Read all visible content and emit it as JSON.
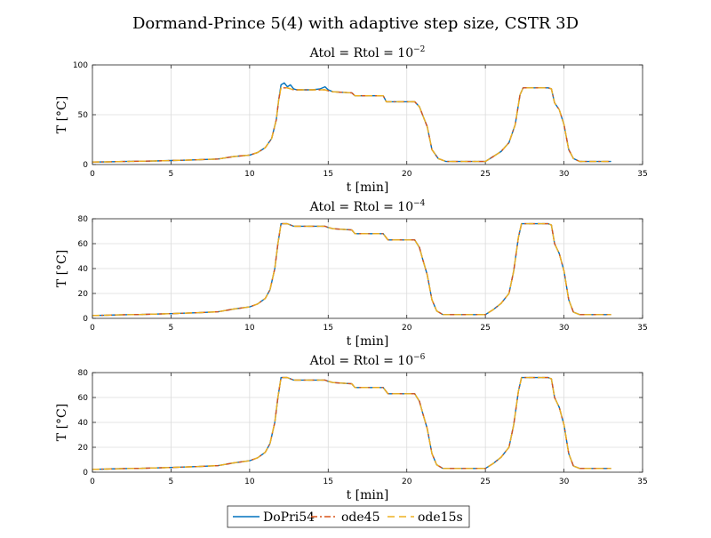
{
  "figure": {
    "title": "Dormand-Prince 5(4) with adaptive step size, CSTR 3D"
  },
  "legend": {
    "entries": [
      {
        "label": "DoPri54",
        "color": "#0072BD",
        "dash": "solid"
      },
      {
        "label": "ode45",
        "color": "#D95319",
        "dash": "dashdot"
      },
      {
        "label": "ode15s",
        "color": "#EDB120",
        "dash": "dashed"
      }
    ]
  },
  "chart_data": [
    {
      "type": "line",
      "title_prefix": "Atol = Rtol = 10",
      "title_exp": "−2",
      "xlabel": "t [min]",
      "ylabel": "T [°C]",
      "xlim": [
        0,
        35
      ],
      "ylim": [
        0,
        100
      ],
      "xticks": [
        "0",
        "5",
        "10",
        "15",
        "20",
        "25",
        "30",
        "35"
      ],
      "yticks": [
        "0",
        "50",
        "100"
      ],
      "grid": true,
      "series": [
        {
          "name": "DoPri54",
          "x": [
            0,
            1,
            2,
            3,
            4,
            5,
            6,
            7,
            8,
            9,
            10,
            10.5,
            11,
            11.4,
            11.7,
            11.85,
            12.0,
            12.2,
            12.4,
            12.6,
            12.8,
            13.0,
            14.0,
            14.5,
            14.8,
            15.0,
            15.3,
            16.5,
            16.7,
            18.5,
            18.7,
            20.5,
            20.8,
            21.0,
            21.3,
            21.6,
            22.0,
            22.5,
            23,
            24,
            25,
            25.5,
            26,
            26.5,
            26.9,
            27.2,
            27.4,
            29.0,
            29.2,
            29.4,
            29.7,
            30.0,
            30.3,
            30.6,
            31,
            32,
            33
          ],
          "y": [
            2.5,
            2.7,
            3,
            3.3,
            3.6,
            4.0,
            4.4,
            5.0,
            5.5,
            8,
            9.5,
            12,
            17,
            26,
            45,
            65,
            80,
            82,
            78,
            80,
            76,
            75,
            75,
            76,
            78,
            75,
            73,
            72,
            69,
            69,
            63,
            63,
            58,
            50,
            38,
            15,
            6,
            3,
            3,
            3,
            3,
            8,
            13,
            22,
            40,
            70,
            77,
            77,
            76,
            62,
            55,
            40,
            15,
            6,
            3,
            3,
            3
          ]
        },
        {
          "name": "ode45",
          "x": [
            0,
            1,
            2,
            3,
            4,
            5,
            6,
            7,
            8,
            9,
            10,
            10.5,
            11,
            11.4,
            11.7,
            11.85,
            12.0,
            12.4,
            12.8,
            13.0,
            14.8,
            15.0,
            15.3,
            16.5,
            16.7,
            18.5,
            18.7,
            20.5,
            20.8,
            21.0,
            21.3,
            21.6,
            22.0,
            22.5,
            23,
            24,
            25,
            25.5,
            26,
            26.5,
            26.9,
            27.2,
            27.4,
            29.0,
            29.2,
            29.4,
            29.7,
            30.0,
            30.3,
            30.6,
            31,
            32,
            33
          ],
          "y": [
            2.5,
            2.7,
            3,
            3.3,
            3.6,
            4.0,
            4.4,
            5.0,
            5.5,
            8,
            9.5,
            12,
            17,
            26,
            45,
            65,
            77,
            77,
            75,
            75,
            75,
            74,
            73,
            72,
            69,
            69,
            63,
            63,
            58,
            50,
            38,
            15,
            6,
            3,
            3,
            3,
            3,
            8,
            13,
            22,
            40,
            70,
            77,
            77,
            76,
            62,
            55,
            40,
            15,
            6,
            3,
            3,
            3
          ]
        },
        {
          "name": "ode15s",
          "x": [
            0,
            1,
            2,
            3,
            4,
            5,
            6,
            7,
            8,
            9,
            10,
            10.5,
            11,
            11.4,
            11.7,
            11.85,
            12.0,
            12.4,
            12.8,
            13.0,
            14.8,
            15.0,
            15.3,
            16.5,
            16.7,
            18.5,
            18.7,
            20.5,
            20.8,
            21.0,
            21.3,
            21.6,
            22.0,
            22.5,
            23,
            24,
            25,
            25.5,
            26,
            26.5,
            26.9,
            27.2,
            27.4,
            29.0,
            29.2,
            29.4,
            29.7,
            30.0,
            30.3,
            30.6,
            31,
            32,
            33
          ],
          "y": [
            2.5,
            2.7,
            3,
            3.3,
            3.6,
            4.0,
            4.4,
            5.0,
            5.5,
            8,
            9.5,
            12,
            17,
            26,
            45,
            65,
            77,
            77,
            75,
            75,
            75,
            74,
            73,
            72,
            69,
            69,
            63,
            63,
            58,
            50,
            38,
            15,
            6,
            3,
            3,
            3,
            3,
            8,
            13,
            22,
            40,
            70,
            77,
            77,
            76,
            62,
            55,
            40,
            15,
            6,
            3,
            3,
            3
          ]
        }
      ]
    },
    {
      "type": "line",
      "title_prefix": "Atol = Rtol = 10",
      "title_exp": "−4",
      "xlabel": "t [min]",
      "ylabel": "T [°C]",
      "xlim": [
        0,
        35
      ],
      "ylim": [
        0,
        80
      ],
      "xticks": [
        "0",
        "5",
        "10",
        "15",
        "20",
        "25",
        "30",
        "35"
      ],
      "yticks": [
        "0",
        "20",
        "40",
        "60",
        "80"
      ],
      "grid": true,
      "series": [
        {
          "name": "DoPri54",
          "x": [
            0,
            1,
            2,
            3,
            4,
            5,
            6,
            7,
            8,
            9,
            10,
            10.5,
            11,
            11.3,
            11.6,
            11.8,
            12.0,
            12.4,
            12.8,
            13.0,
            14.8,
            15.0,
            15.3,
            16.5,
            16.7,
            18.5,
            18.8,
            20.5,
            20.8,
            21.0,
            21.3,
            21.6,
            21.9,
            22.3,
            23,
            24,
            25,
            25.5,
            26,
            26.5,
            26.8,
            27.1,
            27.3,
            29.0,
            29.2,
            29.4,
            29.7,
            30.0,
            30.3,
            30.6,
            31,
            32,
            33
          ],
          "y": [
            2.3,
            2.6,
            2.9,
            3.1,
            3.4,
            3.8,
            4.2,
            4.7,
            5.3,
            7.5,
            9.2,
            11.5,
            16,
            23,
            40,
            60,
            76,
            76,
            74,
            74,
            74,
            73,
            72,
            71,
            68,
            68,
            63,
            63,
            57,
            48,
            35,
            15,
            6,
            3,
            3,
            3,
            3,
            7,
            12,
            20,
            38,
            65,
            76,
            76,
            75,
            60,
            52,
            38,
            15,
            5,
            3,
            3,
            3
          ]
        },
        {
          "name": "ode45",
          "x": [
            0,
            1,
            2,
            3,
            4,
            5,
            6,
            7,
            8,
            9,
            10,
            10.5,
            11,
            11.3,
            11.6,
            11.8,
            12.0,
            12.4,
            12.8,
            13.0,
            14.8,
            15.0,
            15.3,
            16.5,
            16.7,
            18.5,
            18.8,
            20.5,
            20.8,
            21.0,
            21.3,
            21.6,
            21.9,
            22.3,
            23,
            24,
            25,
            25.5,
            26,
            26.5,
            26.8,
            27.1,
            27.3,
            29.0,
            29.2,
            29.4,
            29.7,
            30.0,
            30.3,
            30.6,
            31,
            32,
            33
          ],
          "y": [
            2.3,
            2.6,
            2.9,
            3.1,
            3.4,
            3.8,
            4.2,
            4.7,
            5.3,
            7.5,
            9.2,
            11.5,
            16,
            23,
            40,
            60,
            76,
            76,
            74,
            74,
            74,
            73,
            72,
            71,
            68,
            68,
            63,
            63,
            57,
            48,
            35,
            15,
            6,
            3,
            3,
            3,
            3,
            7,
            12,
            20,
            38,
            65,
            76,
            76,
            75,
            60,
            52,
            38,
            15,
            5,
            3,
            3,
            3
          ]
        },
        {
          "name": "ode15s",
          "x": [
            0,
            1,
            2,
            3,
            4,
            5,
            6,
            7,
            8,
            9,
            10,
            10.5,
            11,
            11.3,
            11.6,
            11.8,
            12.0,
            12.4,
            12.8,
            13.0,
            14.8,
            15.0,
            15.3,
            16.5,
            16.7,
            18.5,
            18.8,
            20.5,
            20.8,
            21.0,
            21.3,
            21.6,
            21.9,
            22.3,
            23,
            24,
            25,
            25.5,
            26,
            26.5,
            26.8,
            27.1,
            27.3,
            29.0,
            29.2,
            29.4,
            29.7,
            30.0,
            30.3,
            30.6,
            31,
            32,
            33
          ],
          "y": [
            2.3,
            2.6,
            2.9,
            3.1,
            3.4,
            3.8,
            4.2,
            4.7,
            5.3,
            7.5,
            9.2,
            11.5,
            16,
            23,
            40,
            60,
            76,
            76,
            74,
            74,
            74,
            73,
            72,
            71,
            68,
            68,
            63,
            63,
            57,
            48,
            35,
            15,
            6,
            3,
            3,
            3,
            3,
            7,
            12,
            20,
            38,
            65,
            76,
            76,
            75,
            60,
            52,
            38,
            15,
            5,
            3,
            3,
            3
          ]
        }
      ]
    },
    {
      "type": "line",
      "title_prefix": "Atol = Rtol = 10",
      "title_exp": "−6",
      "xlabel": "t [min]",
      "ylabel": "T [°C]",
      "xlim": [
        0,
        35
      ],
      "ylim": [
        0,
        80
      ],
      "xticks": [
        "0",
        "5",
        "10",
        "15",
        "20",
        "25",
        "30",
        "35"
      ],
      "yticks": [
        "0",
        "20",
        "40",
        "60",
        "80"
      ],
      "grid": true,
      "series": [
        {
          "name": "DoPri54",
          "x": [
            0,
            1,
            2,
            3,
            4,
            5,
            6,
            7,
            8,
            9,
            10,
            10.5,
            11,
            11.3,
            11.6,
            11.8,
            12.0,
            12.4,
            12.8,
            13.0,
            14.8,
            15.0,
            15.3,
            16.5,
            16.7,
            18.5,
            18.8,
            20.5,
            20.8,
            21.0,
            21.3,
            21.6,
            21.9,
            22.3,
            23,
            24,
            25,
            25.5,
            26,
            26.5,
            26.8,
            27.1,
            27.3,
            29.0,
            29.2,
            29.4,
            29.7,
            30.0,
            30.3,
            30.6,
            31,
            32,
            33
          ],
          "y": [
            2.3,
            2.6,
            2.9,
            3.1,
            3.4,
            3.8,
            4.2,
            4.7,
            5.3,
            7.5,
            9.2,
            11.5,
            16,
            23,
            40,
            60,
            76,
            76,
            74,
            74,
            74,
            73,
            72,
            71,
            68,
            68,
            63,
            63,
            57,
            48,
            35,
            15,
            6,
            3,
            3,
            3,
            3,
            7,
            12,
            20,
            38,
            65,
            76,
            76,
            75,
            60,
            52,
            38,
            15,
            5,
            3,
            3,
            3
          ]
        },
        {
          "name": "ode45",
          "x": [
            0,
            1,
            2,
            3,
            4,
            5,
            6,
            7,
            8,
            9,
            10,
            10.5,
            11,
            11.3,
            11.6,
            11.8,
            12.0,
            12.4,
            12.8,
            13.0,
            14.8,
            15.0,
            15.3,
            16.5,
            16.7,
            18.5,
            18.8,
            20.5,
            20.8,
            21.0,
            21.3,
            21.6,
            21.9,
            22.3,
            23,
            24,
            25,
            25.5,
            26,
            26.5,
            26.8,
            27.1,
            27.3,
            29.0,
            29.2,
            29.4,
            29.7,
            30.0,
            30.3,
            30.6,
            31,
            32,
            33
          ],
          "y": [
            2.3,
            2.6,
            2.9,
            3.1,
            3.4,
            3.8,
            4.2,
            4.7,
            5.3,
            7.5,
            9.2,
            11.5,
            16,
            23,
            40,
            60,
            76,
            76,
            74,
            74,
            74,
            73,
            72,
            71,
            68,
            68,
            63,
            63,
            57,
            48,
            35,
            15,
            6,
            3,
            3,
            3,
            3,
            7,
            12,
            20,
            38,
            65,
            76,
            76,
            75,
            60,
            52,
            38,
            15,
            5,
            3,
            3,
            3
          ]
        },
        {
          "name": "ode15s",
          "x": [
            0,
            1,
            2,
            3,
            4,
            5,
            6,
            7,
            8,
            9,
            10,
            10.5,
            11,
            11.3,
            11.6,
            11.8,
            12.0,
            12.4,
            12.8,
            13.0,
            14.8,
            15.0,
            15.3,
            16.5,
            16.7,
            18.5,
            18.8,
            20.5,
            20.8,
            21.0,
            21.3,
            21.6,
            21.9,
            22.3,
            23,
            24,
            25,
            25.5,
            26,
            26.5,
            26.8,
            27.1,
            27.3,
            29.0,
            29.2,
            29.4,
            29.7,
            30.0,
            30.3,
            30.6,
            31,
            32,
            33
          ],
          "y": [
            2.3,
            2.6,
            2.9,
            3.1,
            3.4,
            3.8,
            4.2,
            4.7,
            5.3,
            7.5,
            9.2,
            11.5,
            16,
            23,
            40,
            60,
            76,
            76,
            74,
            74,
            74,
            73,
            72,
            71,
            68,
            68,
            63,
            63,
            57,
            48,
            35,
            15,
            6,
            3,
            3,
            3,
            3,
            7,
            12,
            20,
            38,
            65,
            76,
            76,
            75,
            60,
            52,
            38,
            15,
            5,
            3,
            3,
            3
          ]
        }
      ]
    }
  ]
}
